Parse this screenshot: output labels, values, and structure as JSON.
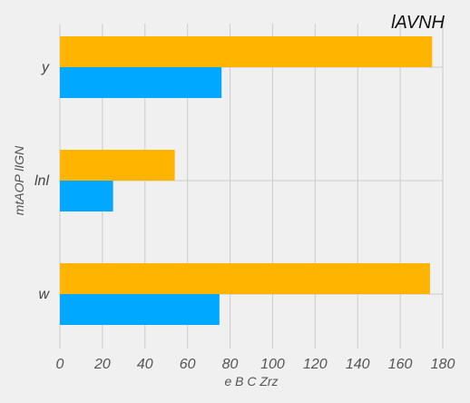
{
  "chart_data": {
    "type": "bar",
    "orientation": "horizontal",
    "title": "lAVNH",
    "xlabel": "e  B  C Zrz",
    "ylabel": "mtAOP lIGN",
    "categories": [
      "y",
      "lnl",
      "w"
    ],
    "series": [
      {
        "color": "#ffb400",
        "values": [
          175,
          54,
          174
        ]
      },
      {
        "color": "#00a8ff",
        "values": [
          76,
          25,
          75
        ]
      }
    ],
    "xlim": [
      0,
      180
    ],
    "xticks": [
      0,
      20,
      40,
      60,
      80,
      100,
      120,
      140,
      160,
      180
    ],
    "grid": true,
    "legend": "none"
  }
}
